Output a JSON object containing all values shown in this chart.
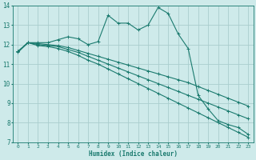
{
  "xlabel": "Humidex (Indice chaleur)",
  "xlim": [
    -0.5,
    23.5
  ],
  "ylim": [
    7,
    14
  ],
  "yticks": [
    7,
    8,
    9,
    10,
    11,
    12,
    13,
    14
  ],
  "xticks": [
    0,
    1,
    2,
    3,
    4,
    5,
    6,
    7,
    8,
    9,
    10,
    11,
    12,
    13,
    14,
    15,
    16,
    17,
    18,
    19,
    20,
    21,
    22,
    23
  ],
  "bg_color": "#ceeaea",
  "grid_color": "#aacece",
  "line_color": "#1a7a6e",
  "line1_y": [
    11.6,
    12.1,
    12.1,
    12.1,
    12.25,
    12.4,
    12.3,
    12.0,
    12.15,
    13.5,
    13.1,
    13.1,
    12.75,
    13.0,
    13.9,
    13.6,
    12.55,
    11.8,
    9.4,
    8.7,
    8.1,
    7.9,
    7.75,
    7.4
  ],
  "line2_y": [
    11.65,
    12.1,
    12.05,
    12.0,
    11.95,
    11.85,
    11.7,
    11.55,
    11.4,
    11.25,
    11.1,
    10.95,
    10.8,
    10.65,
    10.5,
    10.35,
    10.2,
    10.05,
    9.85,
    9.65,
    9.45,
    9.25,
    9.05,
    8.85
  ],
  "line3_y": [
    11.65,
    12.1,
    12.0,
    11.95,
    11.9,
    11.75,
    11.6,
    11.4,
    11.2,
    11.0,
    10.8,
    10.6,
    10.4,
    10.2,
    10.0,
    9.8,
    9.6,
    9.4,
    9.2,
    9.0,
    8.8,
    8.6,
    8.4,
    8.2
  ],
  "line4_y": [
    11.65,
    12.1,
    11.95,
    11.9,
    11.8,
    11.65,
    11.45,
    11.2,
    11.0,
    10.75,
    10.5,
    10.25,
    10.0,
    9.75,
    9.5,
    9.25,
    9.0,
    8.75,
    8.5,
    8.25,
    8.0,
    7.75,
    7.5,
    7.25
  ]
}
